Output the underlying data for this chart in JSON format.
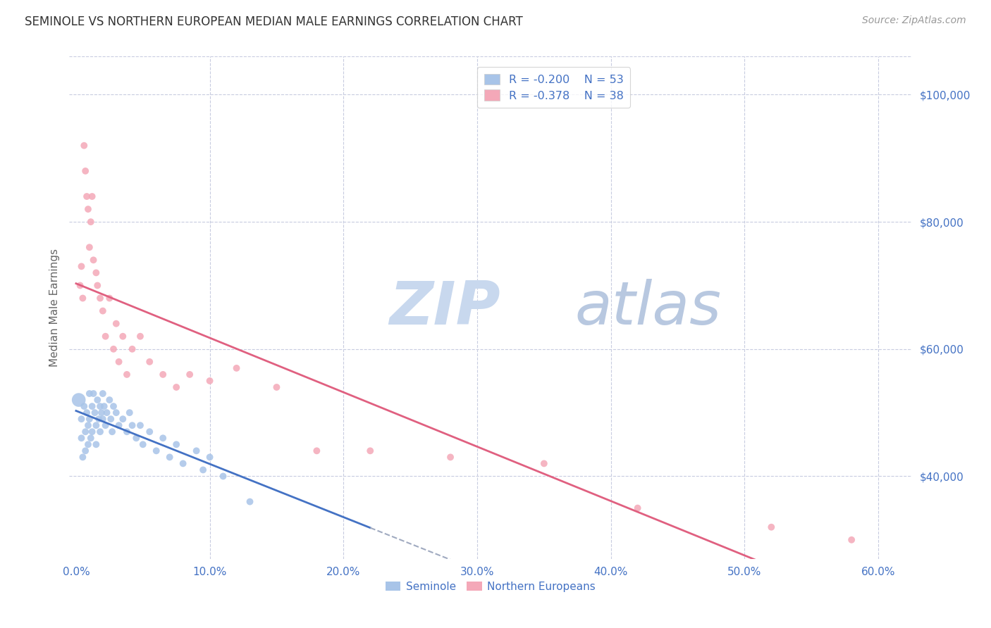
{
  "title": "SEMINOLE VS NORTHERN EUROPEAN MEDIAN MALE EARNINGS CORRELATION CHART",
  "source": "Source: ZipAtlas.com",
  "ylabel": "Median Male Earnings",
  "x_tick_labels": [
    "0.0%",
    "10.0%",
    "20.0%",
    "30.0%",
    "40.0%",
    "50.0%",
    "60.0%"
  ],
  "x_tick_values": [
    0.0,
    0.1,
    0.2,
    0.3,
    0.4,
    0.5,
    0.6
  ],
  "y_tick_labels": [
    "$40,000",
    "$60,000",
    "$80,000",
    "$100,000"
  ],
  "y_tick_values": [
    40000,
    60000,
    80000,
    100000
  ],
  "xlim": [
    -0.005,
    0.625
  ],
  "ylim": [
    27000,
    106000
  ],
  "background_color": "#ffffff",
  "grid_color": "#c8cce0",
  "watermark_color": "#c8d4e8",
  "legend_R1": "-0.200",
  "legend_N1": "53",
  "legend_R2": "-0.378",
  "legend_N2": "38",
  "legend_label1": "Seminole",
  "legend_label2": "Northern Europeans",
  "color_seminole": "#a8c4e8",
  "color_northern": "#f4a8b8",
  "color_text_blue": "#4472c4",
  "color_line_seminole": "#4472c4",
  "color_line_northern": "#e06080",
  "color_line_dashed": "#a0aac0",
  "seminole_x": [
    0.002,
    0.004,
    0.004,
    0.005,
    0.006,
    0.007,
    0.007,
    0.008,
    0.009,
    0.009,
    0.01,
    0.01,
    0.011,
    0.012,
    0.012,
    0.013,
    0.014,
    0.015,
    0.015,
    0.016,
    0.017,
    0.018,
    0.018,
    0.019,
    0.02,
    0.02,
    0.021,
    0.022,
    0.023,
    0.025,
    0.026,
    0.027,
    0.028,
    0.03,
    0.032,
    0.035,
    0.038,
    0.04,
    0.042,
    0.045,
    0.048,
    0.05,
    0.055,
    0.06,
    0.065,
    0.07,
    0.075,
    0.08,
    0.09,
    0.095,
    0.1,
    0.11,
    0.13
  ],
  "seminole_y": [
    52000,
    49000,
    46000,
    43000,
    51000,
    47000,
    44000,
    50000,
    48000,
    45000,
    53000,
    49000,
    46000,
    51000,
    47000,
    53000,
    50000,
    48000,
    45000,
    52000,
    49000,
    51000,
    47000,
    50000,
    53000,
    49000,
    51000,
    48000,
    50000,
    52000,
    49000,
    47000,
    51000,
    50000,
    48000,
    49000,
    47000,
    50000,
    48000,
    46000,
    48000,
    45000,
    47000,
    44000,
    46000,
    43000,
    45000,
    42000,
    44000,
    41000,
    43000,
    40000,
    36000
  ],
  "seminole_sizes": [
    200,
    50,
    50,
    50,
    50,
    50,
    50,
    50,
    50,
    50,
    50,
    50,
    50,
    50,
    50,
    50,
    50,
    50,
    50,
    50,
    50,
    50,
    50,
    50,
    50,
    50,
    50,
    50,
    50,
    50,
    50,
    50,
    50,
    50,
    50,
    50,
    50,
    50,
    50,
    50,
    50,
    50,
    50,
    50,
    50,
    50,
    50,
    50,
    50,
    50,
    50,
    50,
    50
  ],
  "northern_x": [
    0.003,
    0.004,
    0.005,
    0.006,
    0.007,
    0.008,
    0.009,
    0.01,
    0.011,
    0.012,
    0.013,
    0.015,
    0.016,
    0.018,
    0.02,
    0.022,
    0.025,
    0.028,
    0.03,
    0.032,
    0.035,
    0.038,
    0.042,
    0.048,
    0.055,
    0.065,
    0.075,
    0.085,
    0.1,
    0.12,
    0.15,
    0.18,
    0.22,
    0.28,
    0.35,
    0.42,
    0.52,
    0.58
  ],
  "northern_y": [
    70000,
    73000,
    68000,
    92000,
    88000,
    84000,
    82000,
    76000,
    80000,
    84000,
    74000,
    72000,
    70000,
    68000,
    66000,
    62000,
    68000,
    60000,
    64000,
    58000,
    62000,
    56000,
    60000,
    62000,
    58000,
    56000,
    54000,
    56000,
    55000,
    57000,
    54000,
    44000,
    44000,
    43000,
    42000,
    35000,
    32000,
    30000
  ],
  "northern_sizes": [
    50,
    50,
    50,
    50,
    50,
    50,
    50,
    50,
    50,
    50,
    50,
    50,
    50,
    50,
    50,
    50,
    50,
    50,
    50,
    50,
    50,
    50,
    50,
    50,
    50,
    50,
    50,
    50,
    50,
    50,
    50,
    50,
    50,
    50,
    50,
    50,
    50,
    50
  ]
}
